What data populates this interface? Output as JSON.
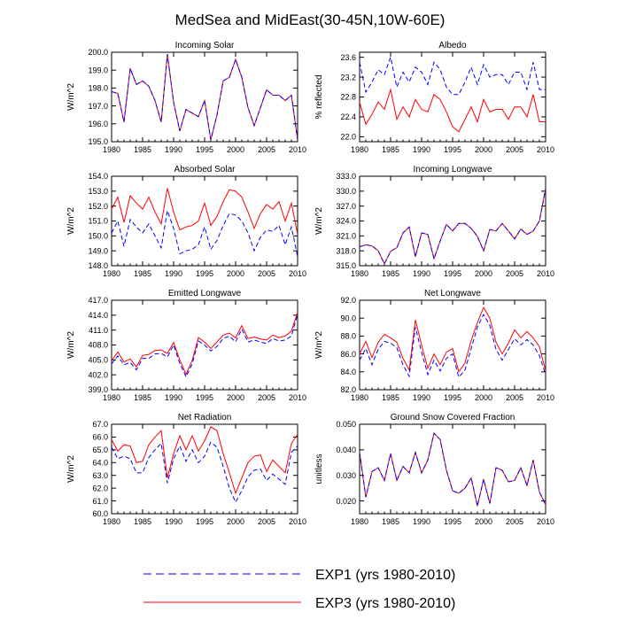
{
  "title": "MedSea and MidEast(30-45N,10W-60E)",
  "colors": {
    "exp1": "#0000ff",
    "exp3": "#ff0000",
    "axis": "#000000"
  },
  "legend": {
    "placement": "bottom",
    "entries": [
      {
        "label": "EXP1 (yrs 1980-2010)",
        "style": "dashed",
        "color": "#0000ff"
      },
      {
        "label": "EXP3 (yrs 1980-2010)",
        "style": "solid",
        "color": "#ff0000"
      }
    ]
  },
  "chart_data": [
    {
      "type": "line",
      "title": "Incoming Solar",
      "ylabel": "W/m^2",
      "xlim": [
        1980,
        2010
      ],
      "x_ticks": [
        "1980",
        "1985",
        "1990",
        "1995",
        "2000",
        "2005",
        "2010"
      ],
      "ylim": [
        195,
        200
      ],
      "y_ticks": [
        "195.0",
        "196.0",
        "197.0",
        "198.0",
        "199.0",
        "200.0"
      ],
      "x": [
        1980,
        1981,
        1982,
        1983,
        1984,
        1985,
        1986,
        1987,
        1988,
        1989,
        1990,
        1991,
        1992,
        1993,
        1994,
        1995,
        1996,
        1997,
        1998,
        1999,
        2000,
        2001,
        2002,
        2003,
        2004,
        2005,
        2006,
        2007,
        2008,
        2009,
        2010
      ],
      "series": [
        {
          "name": "EXP1",
          "values": [
            197.8,
            197.7,
            196.1,
            199.1,
            198.2,
            198.4,
            198.1,
            197.3,
            196.1,
            199.9,
            197.2,
            195.6,
            196.8,
            196.6,
            196.4,
            197.3,
            195.1,
            196.5,
            198.4,
            198.6,
            199.6,
            198.6,
            196.9,
            195.9,
            196.9,
            197.9,
            197.6,
            197.6,
            197.3,
            197.6,
            195.1
          ]
        },
        {
          "name": "EXP3",
          "values": [
            197.8,
            197.7,
            196.1,
            199.1,
            198.2,
            198.4,
            198.1,
            197.3,
            196.1,
            199.9,
            197.2,
            195.6,
            196.8,
            196.6,
            196.4,
            197.3,
            195.1,
            196.5,
            198.4,
            198.6,
            199.6,
            198.6,
            196.9,
            195.9,
            196.9,
            197.9,
            197.6,
            197.6,
            197.3,
            197.6,
            195.1
          ]
        }
      ]
    },
    {
      "type": "line",
      "title": "Albedo",
      "ylabel": "% reflected",
      "xlim": [
        1980,
        2010
      ],
      "x_ticks": [
        "1980",
        "1985",
        "1990",
        "1995",
        "2000",
        "2005",
        "2010"
      ],
      "ylim": [
        21.9,
        23.7
      ],
      "y_ticks": [
        "22.0",
        "22.4",
        "22.8",
        "23.2",
        "23.6"
      ],
      "x": [
        1980,
        1981,
        1982,
        1983,
        1984,
        1985,
        1986,
        1987,
        1988,
        1989,
        1990,
        1991,
        1992,
        1993,
        1994,
        1995,
        1996,
        1997,
        1998,
        1999,
        2000,
        2001,
        2002,
        2003,
        2004,
        2005,
        2006,
        2007,
        2008,
        2009,
        2010
      ],
      "series": [
        {
          "name": "EXP1",
          "values": [
            23.5,
            22.9,
            23.1,
            23.35,
            23.25,
            23.6,
            23.0,
            23.3,
            23.1,
            23.4,
            23.3,
            23.05,
            23.5,
            23.35,
            23.0,
            22.85,
            22.85,
            23.1,
            23.4,
            23.05,
            23.45,
            23.2,
            23.25,
            23.25,
            23.05,
            23.3,
            23.3,
            22.95,
            23.5,
            22.95,
            22.95
          ]
        },
        {
          "name": "EXP3",
          "values": [
            22.7,
            22.25,
            22.45,
            22.7,
            22.55,
            22.95,
            22.35,
            22.6,
            22.4,
            22.75,
            22.55,
            22.5,
            22.85,
            22.75,
            22.5,
            22.2,
            22.1,
            22.35,
            22.6,
            22.3,
            22.75,
            22.5,
            22.55,
            22.55,
            22.35,
            22.6,
            22.6,
            22.4,
            22.85,
            22.3,
            22.3
          ]
        }
      ]
    },
    {
      "type": "line",
      "title": "Absorbed Solar",
      "ylabel": "W/m^2",
      "xlim": [
        1980,
        2010
      ],
      "x_ticks": [
        "1980",
        "1985",
        "1990",
        "1995",
        "2000",
        "2005",
        "2010"
      ],
      "ylim": [
        148,
        154
      ],
      "y_ticks": [
        "148.0",
        "149.0",
        "150.0",
        "151.0",
        "152.0",
        "153.0",
        "154.0"
      ],
      "x": [
        1980,
        1981,
        1982,
        1983,
        1984,
        1985,
        1986,
        1987,
        1988,
        1989,
        1990,
        1991,
        1992,
        1993,
        1994,
        1995,
        1996,
        1997,
        1998,
        1999,
        2000,
        2001,
        2002,
        2003,
        2004,
        2005,
        2006,
        2007,
        2008,
        2009,
        2010
      ],
      "series": [
        {
          "name": "EXP1",
          "values": [
            150.2,
            151.0,
            149.3,
            151.1,
            150.6,
            150.2,
            150.8,
            150.0,
            149.2,
            151.7,
            150.5,
            148.8,
            149.0,
            149.1,
            149.4,
            150.6,
            149.1,
            149.7,
            150.7,
            151.5,
            151.4,
            151.0,
            150.2,
            149.0,
            149.9,
            150.4,
            150.3,
            150.7,
            149.4,
            150.6,
            148.6
          ]
        },
        {
          "name": "EXP3",
          "values": [
            151.8,
            152.6,
            150.9,
            152.7,
            152.2,
            151.8,
            152.6,
            151.6,
            150.8,
            153.2,
            151.6,
            150.4,
            150.6,
            150.7,
            151.0,
            152.2,
            150.7,
            151.3,
            152.3,
            153.1,
            153.0,
            152.6,
            151.6,
            150.5,
            151.5,
            152.1,
            151.8,
            152.3,
            151.0,
            152.2,
            150.1
          ]
        }
      ]
    },
    {
      "type": "line",
      "title": "Incoming Longwave",
      "ylabel": "W/m^2",
      "xlim": [
        1980,
        2010
      ],
      "x_ticks": [
        "1980",
        "1985",
        "1990",
        "1995",
        "2000",
        "2005",
        "2010"
      ],
      "ylim": [
        315,
        333
      ],
      "y_ticks": [
        "315.0",
        "318.0",
        "321.0",
        "324.0",
        "327.0",
        "330.0",
        "333.0"
      ],
      "x": [
        1980,
        1981,
        1982,
        1983,
        1984,
        1985,
        1986,
        1987,
        1988,
        1989,
        1990,
        1991,
        1992,
        1993,
        1994,
        1995,
        1996,
        1997,
        1998,
        1999,
        2000,
        2001,
        2002,
        2003,
        2004,
        2005,
        2006,
        2007,
        2008,
        2009,
        2010
      ],
      "series": [
        {
          "name": "EXP1",
          "values": [
            318.8,
            319.2,
            319.0,
            318.0,
            315.4,
            317.9,
            318.6,
            321.6,
            322.8,
            316.8,
            321.6,
            321.3,
            316.4,
            320.0,
            323.3,
            322.0,
            323.5,
            323.5,
            322.5,
            320.9,
            318.0,
            322.3,
            322.0,
            323.5,
            322.0,
            320.4,
            322.4,
            321.3,
            322.0,
            324.0,
            330.5
          ]
        },
        {
          "name": "EXP3",
          "values": [
            318.8,
            319.2,
            319.0,
            318.0,
            315.4,
            317.9,
            318.6,
            321.6,
            322.8,
            316.8,
            321.6,
            321.3,
            316.4,
            320.0,
            323.3,
            322.0,
            323.5,
            323.5,
            322.5,
            320.9,
            318.0,
            322.3,
            322.0,
            323.5,
            322.0,
            320.4,
            322.4,
            321.3,
            322.0,
            324.0,
            330.5
          ]
        }
      ]
    },
    {
      "type": "line",
      "title": "Emitted Longwave",
      "ylabel": "W/m^2",
      "xlim": [
        1980,
        2010
      ],
      "x_ticks": [
        "1980",
        "1985",
        "1990",
        "1995",
        "2000",
        "2005",
        "2010"
      ],
      "ylim": [
        399,
        417
      ],
      "y_ticks": [
        "399.0",
        "402.0",
        "405.0",
        "408.0",
        "411.0",
        "414.0",
        "417.0"
      ],
      "x": [
        1980,
        1981,
        1982,
        1983,
        1984,
        1985,
        1986,
        1987,
        1988,
        1989,
        1990,
        1991,
        1992,
        1993,
        1994,
        1995,
        1996,
        1997,
        1998,
        1999,
        2000,
        2001,
        2002,
        2003,
        2004,
        2005,
        2006,
        2007,
        2008,
        2009,
        2010
      ],
      "series": [
        {
          "name": "EXP1",
          "values": [
            404.2,
            405.8,
            404.0,
            404.5,
            403.0,
            405.3,
            405.3,
            406.2,
            406.3,
            405.6,
            408.0,
            404.3,
            401.6,
            404.2,
            408.8,
            408.0,
            406.8,
            407.7,
            409.3,
            409.8,
            408.6,
            411.2,
            408.6,
            409.0,
            408.6,
            408.3,
            409.3,
            408.8,
            409.0,
            409.8,
            414.2
          ]
        },
        {
          "name": "EXP3",
          "values": [
            404.8,
            406.6,
            404.6,
            405.2,
            403.6,
            405.9,
            406.1,
            406.9,
            407.0,
            406.3,
            408.5,
            405.0,
            402.1,
            404.9,
            409.5,
            408.6,
            407.3,
            408.6,
            410.0,
            410.4,
            409.4,
            411.9,
            409.3,
            409.6,
            409.2,
            409.0,
            410.0,
            409.5,
            409.8,
            410.8,
            414.6
          ]
        }
      ]
    },
    {
      "type": "line",
      "title": "Net Longwave",
      "ylabel": "W/m^2",
      "xlim": [
        1980,
        2010
      ],
      "x_ticks": [
        "1980",
        "1985",
        "1990",
        "1995",
        "2000",
        "2005",
        "2010"
      ],
      "ylim": [
        82,
        92
      ],
      "y_ticks": [
        "82.0",
        "84.0",
        "86.0",
        "88.0",
        "90.0",
        "92.0"
      ],
      "x": [
        1980,
        1981,
        1982,
        1983,
        1984,
        1985,
        1986,
        1987,
        1988,
        1989,
        1990,
        1991,
        1992,
        1993,
        1994,
        1995,
        1996,
        1997,
        1998,
        1999,
        2000,
        2001,
        2002,
        2003,
        2004,
        2005,
        2006,
        2007,
        2008,
        2009,
        2010
      ],
      "series": [
        {
          "name": "EXP1",
          "values": [
            85.3,
            86.6,
            84.8,
            86.5,
            87.4,
            87.2,
            86.7,
            84.8,
            83.5,
            89.0,
            86.2,
            83.7,
            85.3,
            84.1,
            85.5,
            86.0,
            83.4,
            84.2,
            86.6,
            89.0,
            90.4,
            89.2,
            86.5,
            85.3,
            86.5,
            87.7,
            87.0,
            87.6,
            87.0,
            85.8,
            83.7
          ]
        },
        {
          "name": "EXP3",
          "values": [
            86.0,
            87.4,
            85.6,
            87.3,
            88.2,
            87.8,
            87.3,
            85.5,
            84.2,
            89.8,
            87.0,
            84.4,
            86.0,
            84.8,
            86.2,
            86.6,
            84.0,
            85.0,
            87.5,
            89.5,
            91.2,
            90.0,
            87.3,
            86.0,
            87.2,
            88.7,
            87.8,
            88.5,
            87.8,
            86.8,
            84.1
          ]
        }
      ]
    },
    {
      "type": "line",
      "title": "Net Radiation",
      "ylabel": "W/m^2",
      "xlim": [
        1980,
        2010
      ],
      "x_ticks": [
        "1980",
        "1985",
        "1990",
        "1995",
        "2000",
        "2005",
        "2010"
      ],
      "ylim": [
        60,
        67
      ],
      "y_ticks": [
        "60.0",
        "61.0",
        "62.0",
        "63.0",
        "64.0",
        "65.0",
        "66.0",
        "67.0"
      ],
      "x": [
        1980,
        1981,
        1982,
        1983,
        1984,
        1985,
        1986,
        1987,
        1988,
        1989,
        1990,
        1991,
        1992,
        1993,
        1994,
        1995,
        1996,
        1997,
        1998,
        1999,
        2000,
        2001,
        2002,
        2003,
        2004,
        2005,
        2006,
        2007,
        2008,
        2009,
        2010
      ],
      "series": [
        {
          "name": "EXP1",
          "values": [
            65.2,
            64.3,
            64.5,
            64.3,
            63.2,
            63.2,
            64.4,
            65.0,
            65.5,
            62.4,
            64.3,
            65.3,
            64.1,
            65.0,
            64.0,
            64.5,
            65.6,
            65.2,
            63.7,
            62.0,
            60.9,
            61.8,
            62.9,
            63.4,
            63.5,
            62.6,
            63.1,
            62.7,
            62.3,
            64.8,
            65.3
          ]
        },
        {
          "name": "EXP3",
          "values": [
            65.8,
            64.9,
            65.4,
            65.3,
            64.0,
            64.1,
            65.4,
            66.0,
            66.5,
            62.8,
            64.7,
            66.1,
            65.0,
            66.1,
            64.9,
            65.7,
            66.8,
            66.5,
            64.7,
            63.2,
            61.6,
            62.8,
            64.0,
            64.5,
            64.6,
            63.3,
            64.2,
            63.7,
            63.2,
            65.5,
            66.2
          ]
        }
      ]
    },
    {
      "type": "line",
      "title": "Ground Snow Covered Fraction",
      "ylabel": "unitless",
      "xlim": [
        1980,
        2010
      ],
      "x_ticks": [
        "1980",
        "1985",
        "1990",
        "1995",
        "2000",
        "2005",
        "2010"
      ],
      "ylim": [
        0.015,
        0.05
      ],
      "y_ticks": [
        "0.020",
        "0.030",
        "0.040",
        "0.050"
      ],
      "x": [
        1980,
        1981,
        1982,
        1983,
        1984,
        1985,
        1986,
        1987,
        1988,
        1989,
        1990,
        1991,
        1992,
        1993,
        1994,
        1995,
        1996,
        1997,
        1998,
        1999,
        2000,
        2001,
        2002,
        2003,
        2004,
        2005,
        2006,
        2007,
        2008,
        2009,
        2010
      ],
      "series": [
        {
          "name": "EXP1",
          "values": [
            0.039,
            0.0215,
            0.0315,
            0.033,
            0.028,
            0.0385,
            0.028,
            0.0335,
            0.031,
            0.039,
            0.031,
            0.036,
            0.0465,
            0.044,
            0.032,
            0.024,
            0.023,
            0.025,
            0.029,
            0.018,
            0.0285,
            0.019,
            0.033,
            0.032,
            0.0275,
            0.028,
            0.033,
            0.026,
            0.036,
            0.0235,
            0.0185
          ]
        },
        {
          "name": "EXP3",
          "values": [
            0.039,
            0.0215,
            0.0315,
            0.033,
            0.028,
            0.0385,
            0.028,
            0.0335,
            0.031,
            0.039,
            0.031,
            0.036,
            0.0465,
            0.044,
            0.032,
            0.024,
            0.023,
            0.025,
            0.029,
            0.018,
            0.0285,
            0.019,
            0.033,
            0.032,
            0.0275,
            0.028,
            0.033,
            0.026,
            0.036,
            0.0235,
            0.0185
          ]
        }
      ]
    }
  ]
}
